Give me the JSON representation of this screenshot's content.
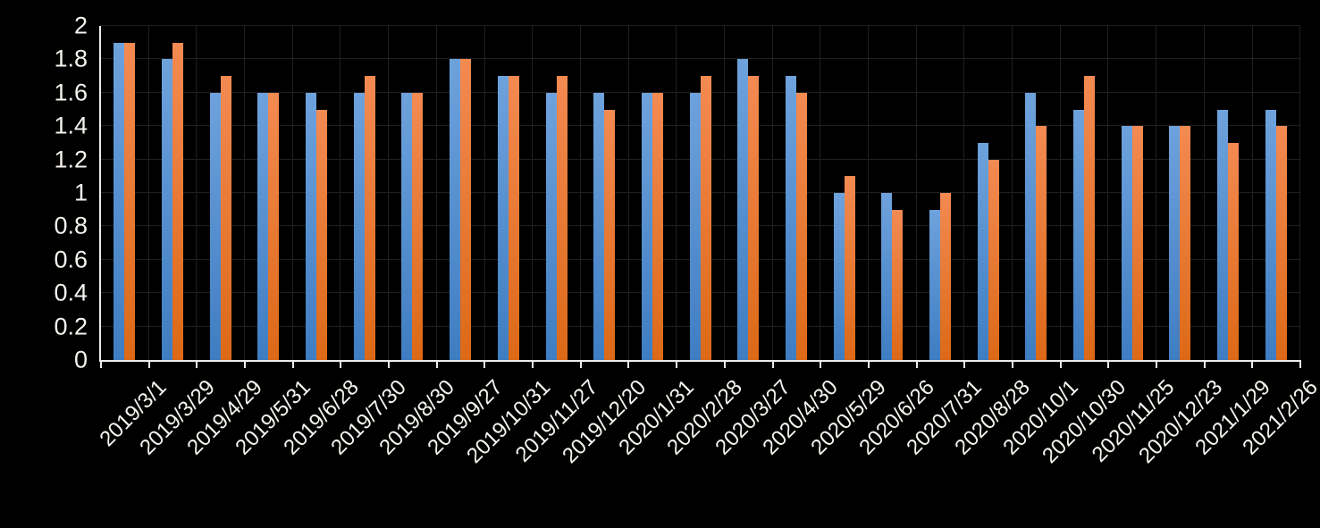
{
  "chart_data": {
    "type": "bar",
    "title": "",
    "xlabel": "",
    "ylabel": "",
    "categories": [
      "2019/3/1",
      "2019/3/29",
      "2019/4/29",
      "2019/5/31",
      "2019/6/28",
      "2019/7/30",
      "2019/8/30",
      "2019/9/27",
      "2019/10/31",
      "2019/11/27",
      "2019/12/20",
      "2020/1/31",
      "2020/2/28",
      "2020/3/27",
      "2020/4/30",
      "2020/5/29",
      "2020/6/26",
      "2020/7/31",
      "2020/8/28",
      "2020/10/1",
      "2020/10/30",
      "2020/11/25",
      "2020/12/23",
      "2021/1/29",
      "2021/2/26"
    ],
    "series": [
      {
        "name": "blue-series",
        "color_top": "#6ea2dc",
        "color_bottom": "#3f7dc2",
        "values": [
          1.9,
          1.8,
          1.6,
          1.6,
          1.6,
          1.6,
          1.6,
          1.8,
          1.7,
          1.6,
          1.6,
          1.6,
          1.6,
          1.8,
          1.7,
          1.0,
          1.0,
          0.9,
          1.3,
          1.6,
          1.5,
          1.4,
          1.4,
          1.5,
          1.5
        ]
      },
      {
        "name": "orange-series",
        "color_top": "#f38a52",
        "color_bottom": "#dc6917",
        "values": [
          1.9,
          1.9,
          1.7,
          1.6,
          1.5,
          1.7,
          1.6,
          1.8,
          1.7,
          1.7,
          1.5,
          1.6,
          1.7,
          1.7,
          1.6,
          1.1,
          0.9,
          1.0,
          1.2,
          1.4,
          1.7,
          1.4,
          1.4,
          1.3,
          1.4
        ]
      }
    ],
    "ylim": [
      0,
      2
    ],
    "ytick_step": 0.2,
    "ytick_labels": [
      "0",
      "0.2",
      "0.4",
      "0.6",
      "0.8",
      "1",
      "1.2",
      "1.4",
      "1.6",
      "1.8",
      "2"
    ],
    "grid": true,
    "legend_position": "none",
    "background_color": "#000000",
    "gridline_color": "#202020",
    "axis_color": "#ececec",
    "label_color": "#f7f4ef"
  }
}
